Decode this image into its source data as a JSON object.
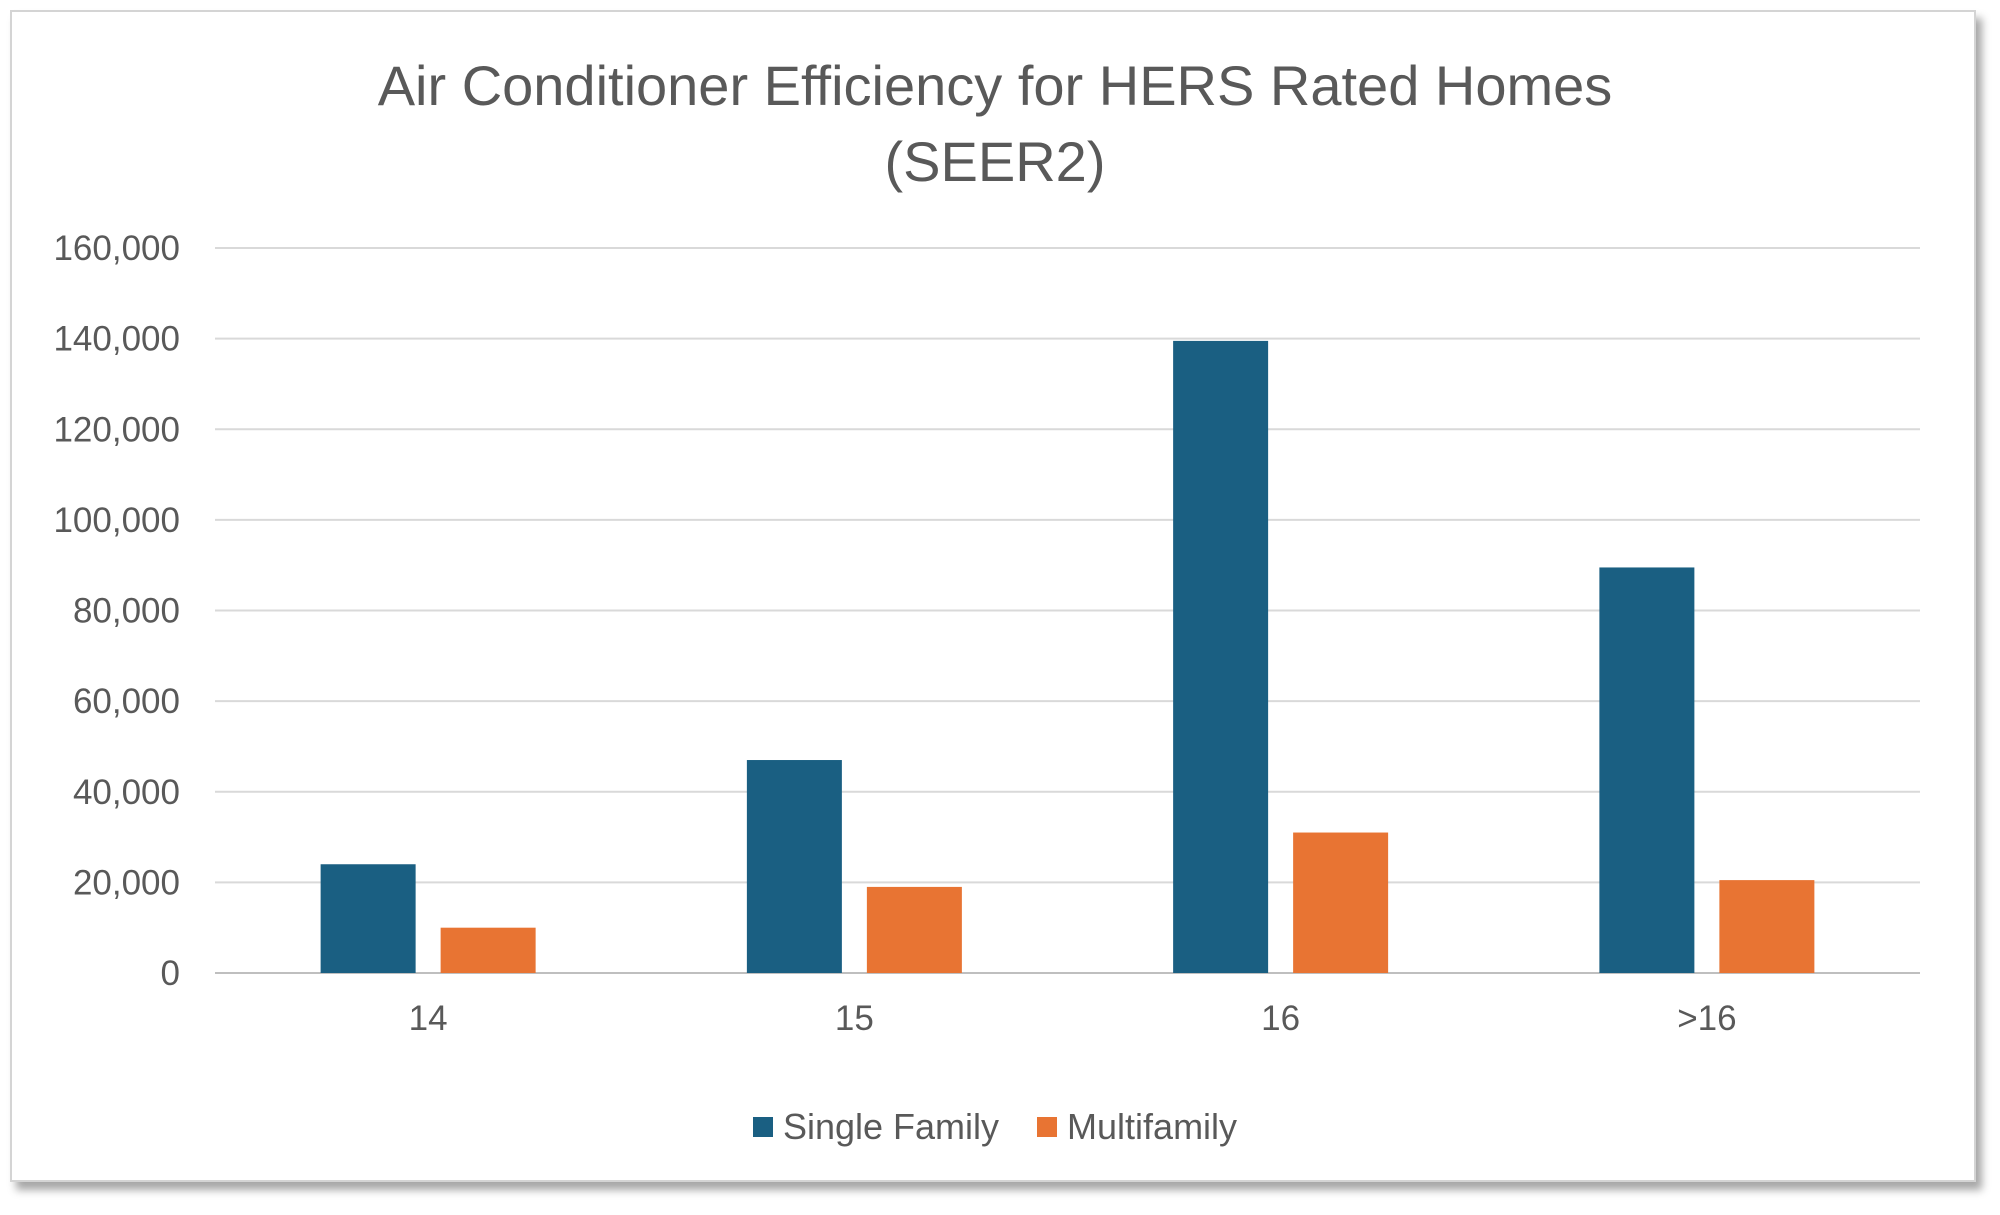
{
  "chart_data": {
    "type": "bar",
    "title": "Air Conditioner Efficiency for HERS Rated Homes",
    "subtitle": "(SEER2)",
    "categories": [
      "14",
      "15",
      "16",
      ">16"
    ],
    "series": [
      {
        "name": "Single Family",
        "color": "#1a5f82",
        "values": [
          24000,
          47000,
          139500,
          89500
        ]
      },
      {
        "name": "Multifamily",
        "color": "#e87433",
        "values": [
          10000,
          19000,
          31000,
          20500
        ]
      }
    ],
    "ylim": [
      0,
      160000
    ],
    "yticks": [
      "0",
      "20,000",
      "40,000",
      "60,000",
      "80,000",
      "100,000",
      "120,000",
      "140,000",
      "160,000"
    ],
    "ytick_values": [
      0,
      20000,
      40000,
      60000,
      80000,
      100000,
      120000,
      140000,
      160000
    ],
    "xlabel": "",
    "ylabel": "",
    "grid": true,
    "legend": "bottom"
  }
}
